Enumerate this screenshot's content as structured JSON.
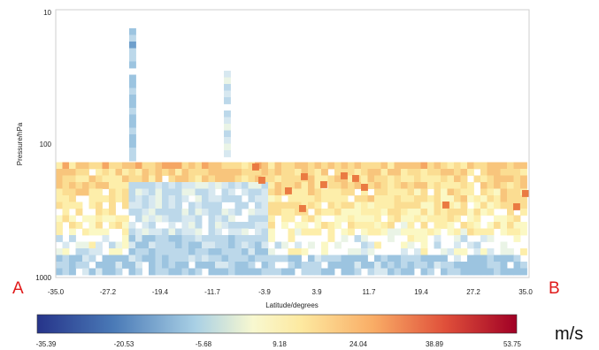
{
  "chart_data": {
    "type": "heatmap",
    "title": "",
    "xlabel": "Latitude/degrees",
    "ylabel": "Pressure/hPa",
    "x_ticks": [
      "-35.0",
      "-27.2",
      "-19.4",
      "-11.7",
      "-3.9",
      "3.9",
      "11.7",
      "19.4",
      "27.2",
      "35.0"
    ],
    "y_ticks": [
      "10",
      "100",
      "1000"
    ],
    "xlim": [
      -35.0,
      35.0
    ],
    "ylim": [
      1000,
      10
    ],
    "y_scale": "log",
    "endpoint_labels": {
      "left": "A",
      "right": "B"
    },
    "colorbar": {
      "label": "m/s",
      "ticks": [
        "-35.39",
        "-20.53",
        "-5.68",
        "9.18",
        "24.04",
        "38.89",
        "53.75"
      ],
      "range": [
        -35.39,
        53.75
      ]
    },
    "grid": false
  }
}
